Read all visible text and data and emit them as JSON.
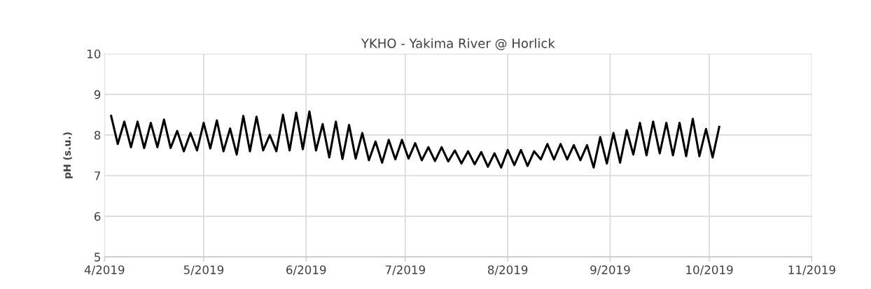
{
  "chart_data": {
    "type": "line",
    "title": "YKHO - Yakima River @ Horlick",
    "ylabel": "pH (s.u.)",
    "x": [
      "2019-04-03",
      "2019-04-05",
      "2019-04-07",
      "2019-04-09",
      "2019-04-11",
      "2019-04-13",
      "2019-04-15",
      "2019-04-17",
      "2019-04-19",
      "2019-04-21",
      "2019-04-23",
      "2019-04-25",
      "2019-04-27",
      "2019-04-29",
      "2019-05-01",
      "2019-05-03",
      "2019-05-05",
      "2019-05-07",
      "2019-05-09",
      "2019-05-11",
      "2019-05-13",
      "2019-05-15",
      "2019-05-17",
      "2019-05-19",
      "2019-05-21",
      "2019-05-23",
      "2019-05-25",
      "2019-05-27",
      "2019-05-29",
      "2019-05-31",
      "2019-06-02",
      "2019-06-04",
      "2019-06-06",
      "2019-06-08",
      "2019-06-10",
      "2019-06-12",
      "2019-06-14",
      "2019-06-16",
      "2019-06-18",
      "2019-06-20",
      "2019-06-22",
      "2019-06-24",
      "2019-06-26",
      "2019-06-28",
      "2019-06-30",
      "2019-07-02",
      "2019-07-04",
      "2019-07-06",
      "2019-07-08",
      "2019-07-10",
      "2019-07-12",
      "2019-07-14",
      "2019-07-16",
      "2019-07-18",
      "2019-07-20",
      "2019-07-22",
      "2019-07-24",
      "2019-07-26",
      "2019-07-28",
      "2019-07-30",
      "2019-08-01",
      "2019-08-03",
      "2019-08-05",
      "2019-08-07",
      "2019-08-09",
      "2019-08-11",
      "2019-08-13",
      "2019-08-15",
      "2019-08-17",
      "2019-08-19",
      "2019-08-21",
      "2019-08-23",
      "2019-08-25",
      "2019-08-27",
      "2019-08-29",
      "2019-08-31",
      "2019-09-02",
      "2019-09-04",
      "2019-09-06",
      "2019-09-08",
      "2019-09-10",
      "2019-09-12",
      "2019-09-14",
      "2019-09-16",
      "2019-09-18",
      "2019-09-20",
      "2019-09-22",
      "2019-09-24",
      "2019-09-26",
      "2019-09-28",
      "2019-09-30",
      "2019-10-02",
      "2019-10-04"
    ],
    "series": [
      {
        "color": "#000000",
        "values": [
          8.47,
          7.78,
          8.33,
          7.7,
          8.33,
          7.68,
          8.3,
          7.7,
          8.38,
          7.68,
          8.1,
          7.6,
          8.05,
          7.62,
          8.3,
          7.67,
          8.36,
          7.6,
          8.16,
          7.52,
          8.47,
          7.6,
          8.45,
          7.62,
          8.0,
          7.6,
          8.5,
          7.62,
          8.55,
          7.65,
          8.58,
          7.62,
          8.27,
          7.45,
          8.33,
          7.41,
          8.25,
          7.42,
          8.05,
          7.38,
          7.84,
          7.32,
          7.88,
          7.4,
          7.88,
          7.42,
          7.8,
          7.38,
          7.7,
          7.36,
          7.7,
          7.35,
          7.62,
          7.3,
          7.6,
          7.28,
          7.58,
          7.22,
          7.55,
          7.2,
          7.63,
          7.26,
          7.63,
          7.24,
          7.6,
          7.4,
          7.78,
          7.4,
          7.78,
          7.4,
          7.75,
          7.38,
          7.75,
          7.2,
          7.95,
          7.3,
          8.05,
          7.32,
          8.12,
          7.52,
          8.3,
          7.5,
          8.33,
          7.55,
          8.3,
          7.5,
          8.3,
          7.48,
          8.4,
          7.48,
          8.15,
          7.45,
          8.2
        ]
      }
    ],
    "xlim": [
      "2019-04-01",
      "2019-11-01"
    ],
    "xticks": [
      {
        "value": "2019-04-01",
        "label": "4/2019"
      },
      {
        "value": "2019-05-01",
        "label": "5/2019"
      },
      {
        "value": "2019-06-01",
        "label": "6/2019"
      },
      {
        "value": "2019-07-01",
        "label": "7/2019"
      },
      {
        "value": "2019-08-01",
        "label": "8/2019"
      },
      {
        "value": "2019-09-01",
        "label": "9/2019"
      },
      {
        "value": "2019-10-01",
        "label": "10/2019"
      },
      {
        "value": "2019-11-01",
        "label": "11/2019"
      }
    ],
    "ylim": [
      5,
      10
    ],
    "yticks": [
      5,
      6,
      7,
      8,
      9,
      10
    ],
    "grid": true,
    "marker": "none",
    "line_style": "solid"
  }
}
